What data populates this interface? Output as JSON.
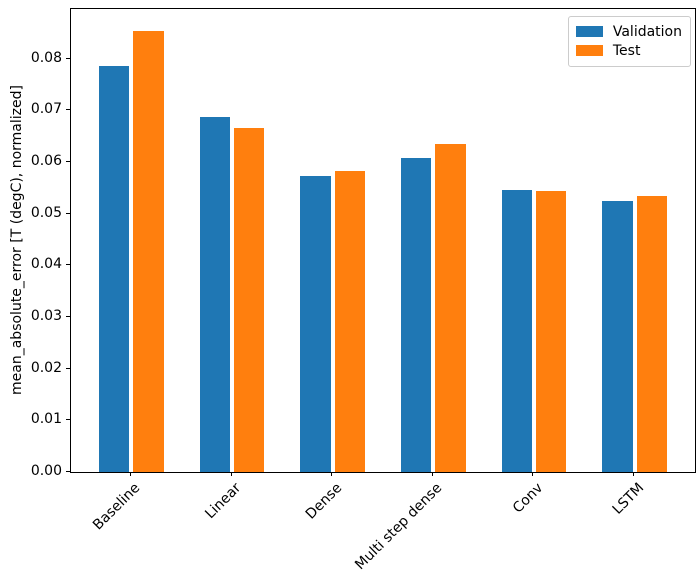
{
  "chart_data": {
    "type": "bar",
    "title": "",
    "xlabel": "",
    "ylabel": "mean_absolute_error [T (degC), normalized]",
    "categories": [
      "Baseline",
      "Linear",
      "Dense",
      "Multi step dense",
      "Conv",
      "LSTM"
    ],
    "series": [
      {
        "name": "Validation",
        "color": "#1f77b4",
        "values": [
          0.0785,
          0.0687,
          0.0572,
          0.0607,
          0.0545,
          0.0525
        ]
      },
      {
        "name": "Test",
        "color": "#ff7f0e",
        "values": [
          0.0853,
          0.0665,
          0.0583,
          0.0634,
          0.0543,
          0.0534
        ]
      }
    ],
    "ylim": [
      0,
      0.0896
    ],
    "yticks": [
      "0.00",
      "0.01",
      "0.02",
      "0.03",
      "0.04",
      "0.05",
      "0.06",
      "0.07",
      "0.08"
    ],
    "xtick_rotation_deg": 45,
    "grid": false,
    "legend_position": "upper right",
    "bar_width_ratio": 0.3,
    "bar_offset_ratio": 0.17,
    "colors": {
      "background": "#ffffff",
      "axes": "#000000",
      "text": "#000000",
      "legend_border": "#cccccc"
    }
  }
}
